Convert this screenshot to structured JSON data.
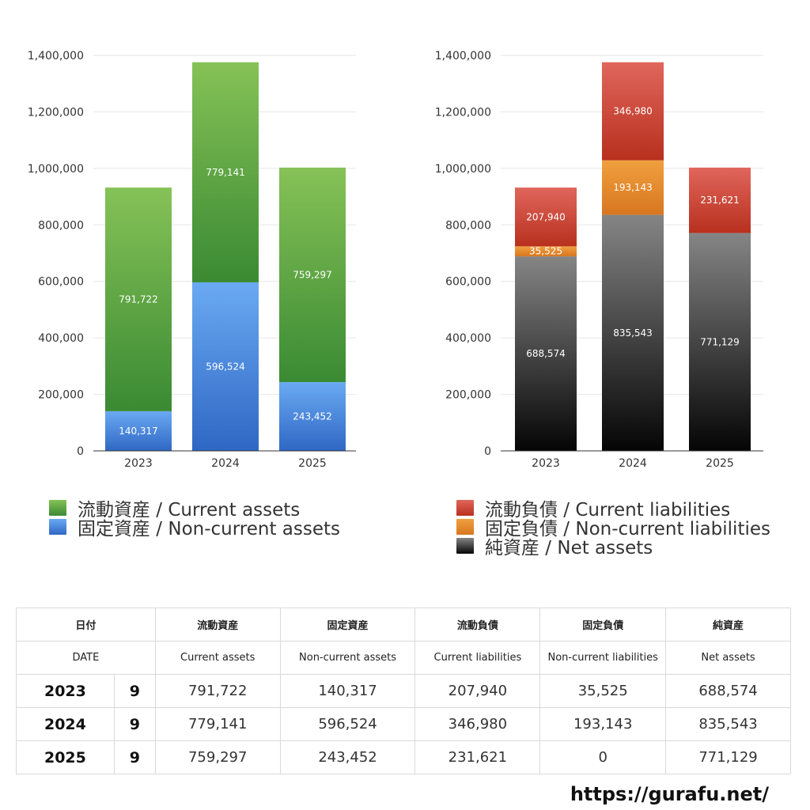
{
  "chart_data": [
    {
      "type": "bar",
      "stacked": true,
      "categories": [
        "2023",
        "2024",
        "2025"
      ],
      "ylim": [
        0,
        1400000
      ],
      "yticks": [
        "0",
        "200,000",
        "400,000",
        "600,000",
        "800,000",
        "1,000,000",
        "1,200,000",
        "1,400,000"
      ],
      "grid": true,
      "series": [
        {
          "name": "固定資産 / Non-current assets",
          "values": [
            140317,
            596524,
            243452
          ],
          "labels": [
            "140,317",
            "596,524",
            "243,452"
          ],
          "color_top": "#6aaaf2",
          "color_bottom": "#2f67c4"
        },
        {
          "name": "流動資産 / Current assets",
          "values": [
            791722,
            779141,
            759297
          ],
          "labels": [
            "791,722",
            "779,141",
            "759,297"
          ],
          "color_top": "#86c257",
          "color_bottom": "#3a8a33"
        }
      ]
    },
    {
      "type": "bar",
      "stacked": true,
      "categories": [
        "2023",
        "2024",
        "2025"
      ],
      "ylim": [
        0,
        1400000
      ],
      "yticks": [
        "0",
        "200,000",
        "400,000",
        "600,000",
        "800,000",
        "1,000,000",
        "1,200,000",
        "1,400,000"
      ],
      "grid": true,
      "series": [
        {
          "name": "純資産 / Net assets",
          "values": [
            688574,
            835543,
            771129
          ],
          "labels": [
            "688,574",
            "835,543",
            "771,129"
          ],
          "color_top": "#858585",
          "color_bottom": "#050505"
        },
        {
          "name": "固定負債 / Non-current liabilities",
          "values": [
            35525,
            193143,
            0
          ],
          "labels": [
            "35,525",
            "193,143",
            ""
          ],
          "color_top": "#f0a040",
          "color_bottom": "#d8761f"
        },
        {
          "name": "流動負債 / Current liabilities",
          "values": [
            207940,
            346980,
            231621
          ],
          "labels": [
            "207,940",
            "346,980",
            "231,621"
          ],
          "color_top": "#e0665c",
          "color_bottom": "#b8301e"
        }
      ]
    }
  ],
  "legend_left": [
    {
      "label": "流動資産 / Current assets",
      "color": "#4e9e3c"
    },
    {
      "label": "固定資産 / Non-current assets",
      "color": "#3f7fd6"
    }
  ],
  "legend_right": [
    {
      "label": "流動負債 / Current liabilities",
      "color": "#cf4632"
    },
    {
      "label": "固定負債 / Non-current liabilities",
      "color": "#e5862e"
    },
    {
      "label": "純資産 / Net assets",
      "color": "#2a2a2a"
    }
  ],
  "table": {
    "headers_jp": [
      "日付",
      "流動資産",
      "固定資産",
      "流動負債",
      "固定負債",
      "純資産"
    ],
    "headers_en": [
      "DATE",
      "Current assets",
      "Non-current assets",
      "Current liabilities",
      "Non-current liabilities",
      "Net assets"
    ],
    "rows": [
      {
        "year": "2023",
        "month": "9",
        "values": [
          "791,722",
          "140,317",
          "207,940",
          "35,525",
          "688,574"
        ]
      },
      {
        "year": "2024",
        "month": "9",
        "values": [
          "779,141",
          "596,524",
          "346,980",
          "193,143",
          "835,543"
        ]
      },
      {
        "year": "2025",
        "month": "9",
        "values": [
          "759,297",
          "243,452",
          "231,621",
          "0",
          "771,129"
        ]
      }
    ]
  },
  "footer_url": "https://gurafu.net/"
}
